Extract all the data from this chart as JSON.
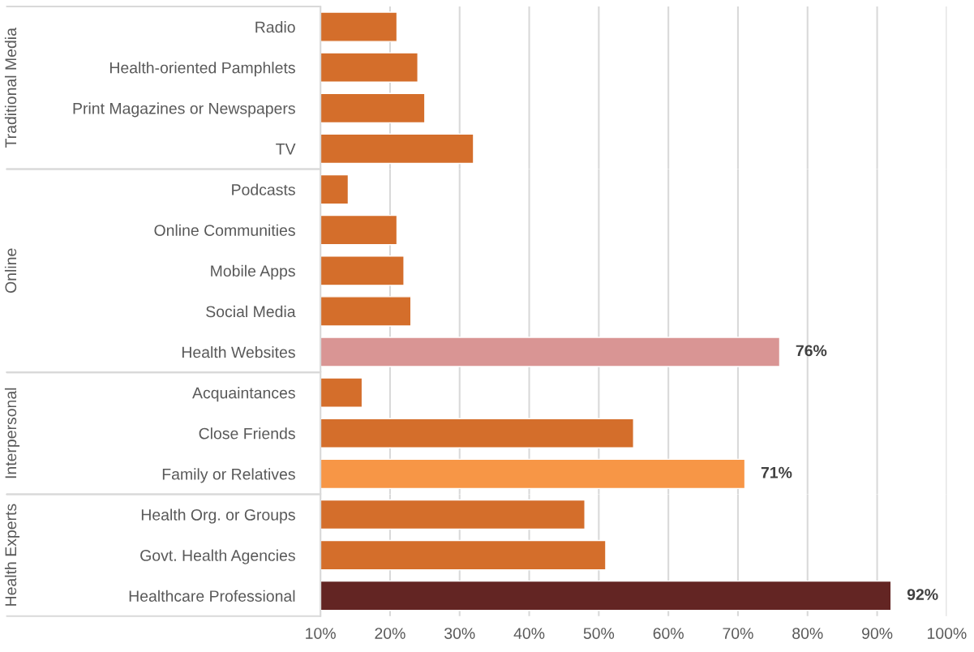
{
  "chart_data": [
    {
      "type": "bar",
      "orientation": "horizontal",
      "ylabel": "Traditional Media",
      "categories": [
        "Radio",
        "Health-oriented Pamphlets",
        "Print Magazines or Newspapers",
        "TV"
      ],
      "values": [
        21,
        24,
        25,
        32
      ],
      "colors": [
        "#d46e2b",
        "#d46e2b",
        "#d46e2b",
        "#d46e2b"
      ],
      "xlim": [
        10,
        100
      ],
      "xticks": [
        10,
        20,
        30,
        40,
        50,
        60,
        70,
        80,
        90,
        100
      ],
      "tick_labels": "y",
      "grid": "x"
    },
    {
      "type": "bar",
      "orientation": "horizontal",
      "ylabel": "Online",
      "categories": [
        "Podcasts",
        "Online Communities",
        "Mobile Apps",
        "Social Media",
        "Health Websites"
      ],
      "values": [
        14,
        21,
        22,
        23,
        76
      ],
      "colors": [
        "#d46e2b",
        "#d46e2b",
        "#d46e2b",
        "#d46e2b",
        "#d99594"
      ],
      "value_labels": [
        null,
        null,
        null,
        null,
        "76%"
      ],
      "xlim": [
        10,
        100
      ],
      "xticks": [
        10,
        20,
        30,
        40,
        50,
        60,
        70,
        80,
        90,
        100
      ],
      "tick_labels": "y",
      "grid": "x"
    },
    {
      "type": "bar",
      "orientation": "horizontal",
      "ylabel": "Interpersonal",
      "categories": [
        "Acquaintances",
        "Close Friends",
        "Family or Relatives"
      ],
      "values": [
        16,
        55,
        71
      ],
      "colors": [
        "#d46e2b",
        "#d46e2b",
        "#f79646"
      ],
      "value_labels": [
        null,
        null,
        "71%"
      ],
      "xlim": [
        10,
        100
      ],
      "xticks": [
        10,
        20,
        30,
        40,
        50,
        60,
        70,
        80,
        90,
        100
      ],
      "tick_labels": "y",
      "grid": "x"
    },
    {
      "type": "bar",
      "orientation": "horizontal",
      "ylabel": "Health Experts",
      "categories": [
        "Health Org. or Groups",
        "Govt. Health Agencies",
        "Healthcare Professional"
      ],
      "values": [
        48,
        51,
        92
      ],
      "colors": [
        "#d46e2b",
        "#d46e2b",
        "#632523"
      ],
      "value_labels": [
        null,
        null,
        "92%"
      ],
      "xlim": [
        10,
        100
      ],
      "xticks": [
        {
          "value": 10,
          "label": "10%"
        },
        {
          "value": 20,
          "label": "20%"
        },
        {
          "value": 30,
          "label": "30%"
        },
        {
          "value": 40,
          "label": "40%"
        },
        {
          "value": 50,
          "label": "50%"
        },
        {
          "value": 60,
          "label": "60%"
        },
        {
          "value": 70,
          "label": "70%"
        },
        {
          "value": 80,
          "label": "80%"
        },
        {
          "value": 90,
          "label": "90%"
        },
        {
          "value": 100,
          "label": "100%"
        }
      ],
      "grid": "x"
    }
  ]
}
